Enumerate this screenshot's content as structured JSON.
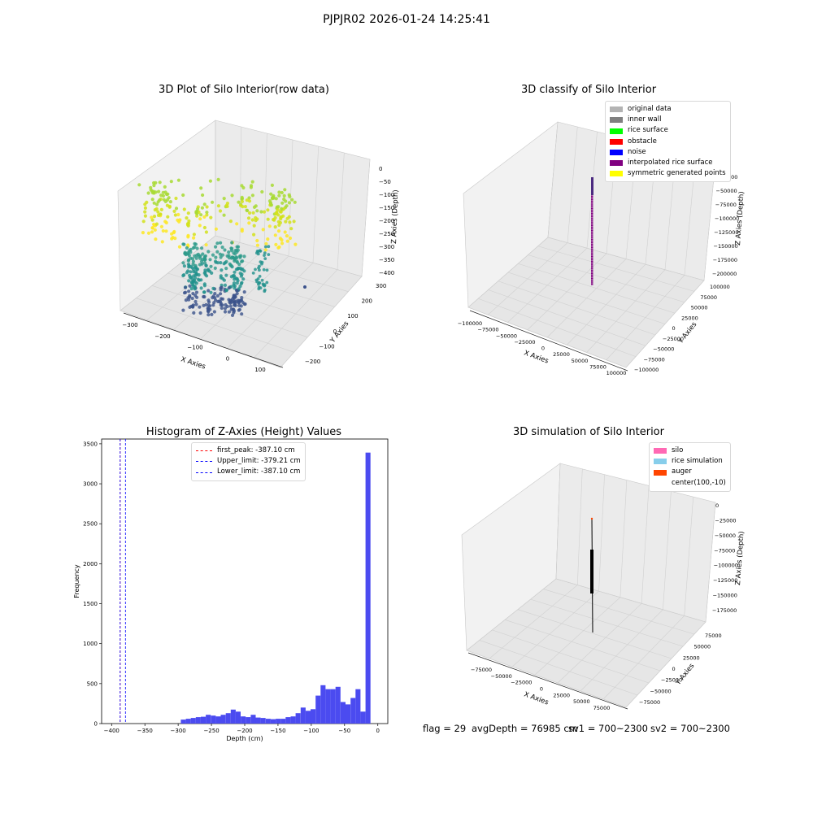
{
  "suptitle": "PJPJR02 2026-01-24 14:25:41",
  "status": {
    "flag": "flag = 29",
    "avg_depth": "avgDepth = 76985 cm",
    "sv1": "sv1 = 700~2300",
    "sv2": "sv2 = 700~2300"
  },
  "chart_data": [
    {
      "type": "scatter",
      "projection": "3d",
      "title": "3D Plot of Silo Interior(row data)",
      "xlabel": "X Axies",
      "ylabel": "Y Axies",
      "zlabel": "Z Axies (Depth)",
      "x_ticks": [
        "−300",
        "−200",
        "−100",
        "0",
        "100"
      ],
      "y_ticks": [
        "−200",
        "−100",
        "0",
        "100",
        "200",
        "300"
      ],
      "z_ticks": [
        "0",
        "−50",
        "−100",
        "−150",
        "−200",
        "−250",
        "−300",
        "−350",
        "−400"
      ],
      "xlim": [
        -330,
        140
      ],
      "ylim": [
        -230,
        320
      ],
      "zlim": [
        -420,
        10
      ],
      "colormap": "viridis",
      "grid": true,
      "description_of_marks": "point cloud: yellow-green ring near z -100 to -200, teal/blue cylinder down to about z -370"
    },
    {
      "type": "scatter",
      "projection": "3d",
      "title": "3D classify of Silo Interior",
      "xlabel": "X Axies",
      "ylabel": "Y Axies",
      "zlabel": "Z Axies (Depth)",
      "x_ticks": [
        "−100000",
        "−75000",
        "−50000",
        "−25000",
        "0",
        "25000",
        "50000",
        "75000",
        "100000"
      ],
      "y_ticks": [
        "−100000",
        "−75000",
        "−50000",
        "−25000",
        "0",
        "25000",
        "50000",
        "75000",
        "100000"
      ],
      "z_ticks": [
        "0",
        "−25000",
        "−50000",
        "−75000",
        "−100000",
        "−125000",
        "−150000",
        "−175000",
        "−200000"
      ],
      "legend_position": "upper right",
      "legend": [
        {
          "label": "original data",
          "color": "#b3b3b3"
        },
        {
          "label": "inner wall",
          "color": "#808080"
        },
        {
          "label": "rice surface",
          "color": "#00ff00"
        },
        {
          "label": "obstacle",
          "color": "#ff0000"
        },
        {
          "label": "noise",
          "color": "#0000ff"
        },
        {
          "label": "interpolated rice surface",
          "color": "#800080"
        },
        {
          "label": "symmetric generated points",
          "color": "#ffff00"
        }
      ],
      "grid": true
    },
    {
      "type": "bar",
      "title": "Histogram of Z-Axies (Height) Values",
      "xlabel": "Depth (cm)",
      "ylabel": "Frequency",
      "x_ticks": [
        "−400",
        "−350",
        "−300",
        "−250",
        "−200",
        "−150",
        "−100",
        "−50",
        "0"
      ],
      "y_ticks": [
        "0",
        "500",
        "1000",
        "1500",
        "2000",
        "2500",
        "3000",
        "3500"
      ],
      "xlim": [
        -415,
        15
      ],
      "ylim": [
        0,
        3560
      ],
      "bar_color": "#4b4bf0",
      "bin_width": 7.5,
      "bins": [
        [
          -296,
          50
        ],
        [
          -288.5,
          60
        ],
        [
          -281,
          70
        ],
        [
          -273.5,
          80
        ],
        [
          -266,
          85
        ],
        [
          -258.5,
          110
        ],
        [
          -251,
          100
        ],
        [
          -243.5,
          90
        ],
        [
          -236,
          110
        ],
        [
          -228.5,
          130
        ],
        [
          -221,
          175
        ],
        [
          -213.5,
          150
        ],
        [
          -206,
          90
        ],
        [
          -198.5,
          80
        ],
        [
          -191,
          110
        ],
        [
          -183.5,
          75
        ],
        [
          -176,
          70
        ],
        [
          -168.5,
          60
        ],
        [
          -161,
          55
        ],
        [
          -153.5,
          60
        ],
        [
          -146,
          60
        ],
        [
          -138.5,
          80
        ],
        [
          -131,
          90
        ],
        [
          -123.5,
          130
        ],
        [
          -116,
          200
        ],
        [
          -108.5,
          160
        ],
        [
          -101,
          180
        ],
        [
          -93.5,
          350
        ],
        [
          -86,
          480
        ],
        [
          -78.5,
          430
        ],
        [
          -71,
          430
        ],
        [
          -63.5,
          460
        ],
        [
          -56,
          270
        ],
        [
          -48.5,
          240
        ],
        [
          -41,
          320
        ],
        [
          -33.5,
          430
        ],
        [
          -26,
          150
        ],
        [
          -18.5,
          3390
        ],
        [
          -11,
          0
        ]
      ],
      "vlines": [
        {
          "label": "first_peak: -387.10 cm",
          "x": -387.1,
          "color": "#ff0000"
        },
        {
          "label": "Upper_limit: -379.21 cm",
          "x": -379.21,
          "color": "#0000ff"
        },
        {
          "label": "Lower_limit: -387.10 cm",
          "x": -387.1,
          "color": "#0000ff"
        }
      ],
      "legend_position": "upper center"
    },
    {
      "type": "scatter",
      "projection": "3d",
      "title": "3D simulation of Silo Interior",
      "xlabel": "X Axies",
      "ylabel": "Y Axies",
      "zlabel": "Z Axies (Depth)",
      "x_ticks": [
        "−75000",
        "−50000",
        "−25000",
        "0",
        "25000",
        "50000",
        "75000"
      ],
      "y_ticks": [
        "−75000",
        "−50000",
        "−25000",
        "0",
        "25000",
        "50000",
        "75000"
      ],
      "z_ticks": [
        "0",
        "−25000",
        "−50000",
        "−75000",
        "−100000",
        "−125000",
        "−150000",
        "−175000"
      ],
      "legend_position": "upper right",
      "legend": [
        {
          "label": "silo",
          "color": "#ff69b4"
        },
        {
          "label": "rice simulation",
          "color": "#87ceeb"
        },
        {
          "label": "auger",
          "color": "#ff4500"
        },
        {
          "label": "center(100,-10)",
          "color": ""
        }
      ],
      "grid": true
    }
  ]
}
